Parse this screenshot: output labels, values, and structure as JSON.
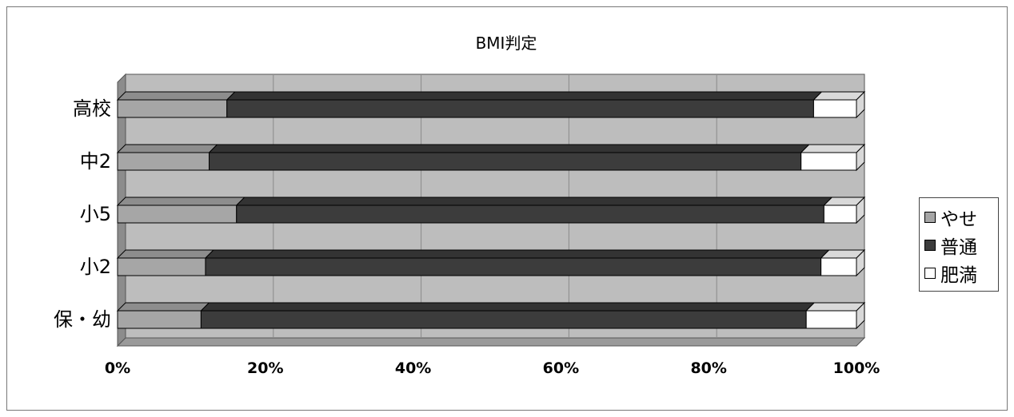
{
  "chart_data": {
    "type": "bar",
    "orientation": "horizontal",
    "stacked": "percent",
    "three_d": true,
    "title": "BMI判定",
    "categories": [
      "保・幼",
      "小2",
      "小5",
      "中2",
      "高校"
    ],
    "series": [
      {
        "name": "やせ",
        "values": [
          11.3,
          11.9,
          16.1,
          12.4,
          14.8
        ],
        "color": "#a6a6a6"
      },
      {
        "name": "普通",
        "values": [
          81.9,
          83.3,
          79.5,
          80.1,
          79.4
        ],
        "color": "#3c3c3c"
      },
      {
        "name": "肥満",
        "values": [
          6.8,
          4.8,
          4.4,
          7.5,
          5.8
        ],
        "color": "#ffffff"
      }
    ],
    "x_ticks": [
      "0%",
      "20%",
      "40%",
      "60%",
      "80%",
      "100%"
    ],
    "xlim": [
      0,
      100
    ],
    "grid": true,
    "legend_position": "right",
    "colors": {
      "plot_background": "#bdbdbd",
      "frame": "#777777"
    }
  }
}
